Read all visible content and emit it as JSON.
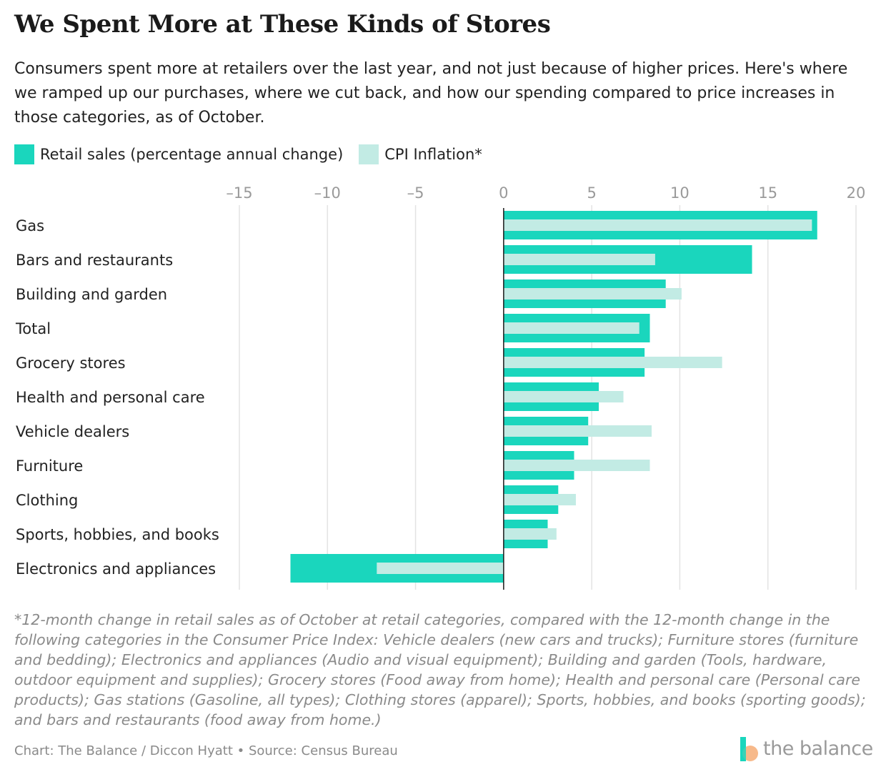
{
  "header": {
    "title": "We Spent More at These Kinds of Stores",
    "subtitle": "Consumers spent more at retailers over the last year, and not just because of higher prices. Here's where we ramped up our purchases, where we cut back, and how our spending compared to price increases in those categories, as of October."
  },
  "legend": {
    "retail_label": "Retail sales (percentage annual change)",
    "cpi_label": "CPI Inflation*"
  },
  "colors": {
    "retail": "#1ad6bd",
    "cpi": "#c2ebe4",
    "grid": "#e3e3e3",
    "axis_text": "#9a9a9a",
    "zero_line": "#1a1a1a"
  },
  "chart_data": {
    "type": "bar",
    "orientation": "horizontal",
    "categories": [
      "Gas",
      "Bars and restaurants",
      "Building and garden",
      "Total",
      "Grocery stores",
      "Health and personal care",
      "Vehicle dealers",
      "Furniture",
      "Clothing",
      "Sports, hobbies, and books",
      "Electronics and appliances"
    ],
    "series": [
      {
        "name": "Retail sales (percentage annual change)",
        "values": [
          17.8,
          14.1,
          9.2,
          8.3,
          8.0,
          5.4,
          4.8,
          4.0,
          3.1,
          2.5,
          -12.1
        ]
      },
      {
        "name": "CPI Inflation*",
        "values": [
          17.5,
          8.6,
          10.1,
          7.7,
          12.4,
          6.8,
          8.4,
          8.3,
          4.1,
          3.0,
          -7.2
        ]
      }
    ],
    "xlim": [
      -15,
      20
    ],
    "xticks": [
      -15,
      -10,
      -5,
      0,
      5,
      10,
      15,
      20
    ],
    "xtick_labels": [
      "–15",
      "–10",
      "–5",
      "0",
      "5",
      "10",
      "15",
      "20"
    ],
    "title": "We Spent More at These Kinds of Stores",
    "xlabel": "",
    "ylabel": "",
    "grid": true,
    "legend_position": "top-left"
  },
  "footnote": "*12-month change in retail sales as of October at retail categories, compared with the 12-month change in the following categories in the Consumer Price Index: Vehicle dealers (new cars and trucks); Furniture stores (furniture and bedding); Electronics and appliances (Audio and visual equipment); Building and garden (Tools, hardware, outdoor equipment and supplies); Grocery stores (Food away from home); Health and personal care (Personal care products); Gas stations (Gasoline, all types); Clothing stores (apparel); Sports, hobbies, and books (sporting goods); and bars and restaurants (food away from home.)",
  "credit": "Chart: The Balance / Diccon Hyatt • Source: Census Bureau",
  "logo": {
    "text": "the balance",
    "icon": "the-balance-logo-icon"
  }
}
